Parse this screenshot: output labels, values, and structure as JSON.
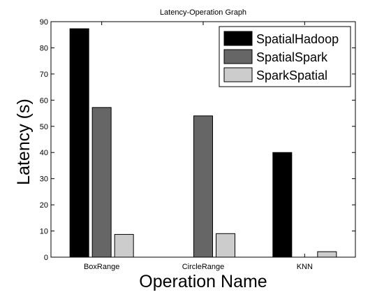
{
  "chart_data": {
    "type": "bar",
    "title": "Latency-Operation Graph",
    "xlabel": "Operation Name",
    "ylabel": "Latency (s)",
    "categories": [
      "BoxRange",
      "CircleRange",
      "KNN"
    ],
    "ylim": [
      0,
      90
    ],
    "yticks": [
      0,
      10,
      20,
      30,
      40,
      50,
      60,
      70,
      80,
      90
    ],
    "grid": false,
    "legend_position": "top-right",
    "series": [
      {
        "name": "SpatialHadoop",
        "color": "#000000",
        "values": [
          87.3,
          null,
          40.0
        ]
      },
      {
        "name": "SpatialSpark",
        "color": "#666666",
        "values": [
          57.2,
          54.0,
          null
        ]
      },
      {
        "name": "SparkSpatial",
        "color": "#cccccc",
        "values": [
          8.7,
          9.0,
          2.1
        ]
      }
    ]
  }
}
